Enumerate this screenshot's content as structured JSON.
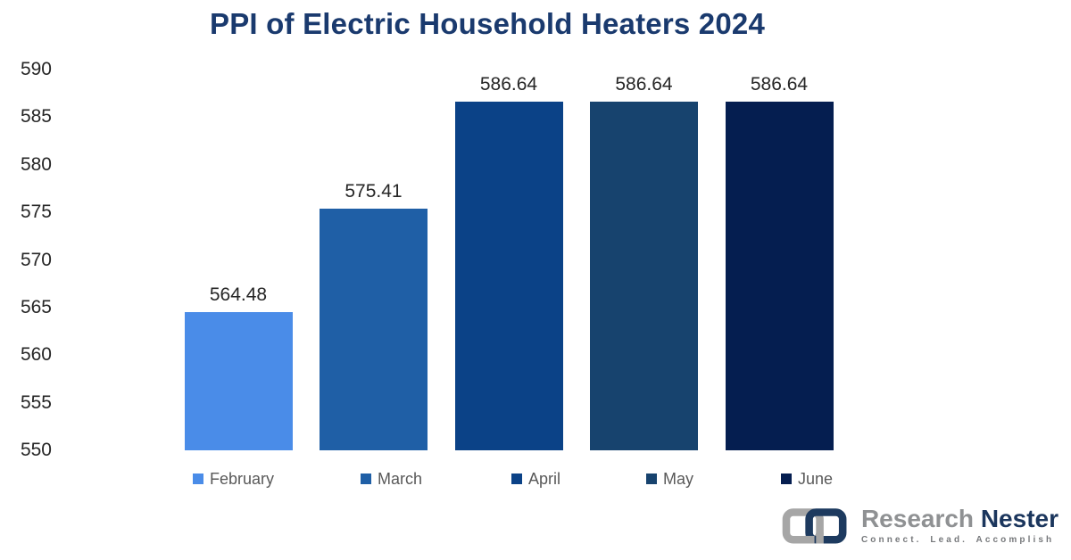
{
  "title": {
    "text": "PPI of Electric Household Heaters 2024",
    "color": "#1a3a6e"
  },
  "chart_data": {
    "type": "bar",
    "title": "PPI of Electric Household Heaters 2024",
    "categories": [
      "February",
      "March",
      "April",
      "May",
      "June"
    ],
    "values": [
      564.48,
      575.41,
      586.64,
      586.64,
      586.64
    ],
    "value_labels": [
      "564.48",
      "575.41",
      "586.64",
      "586.64",
      "586.64"
    ],
    "bar_colors": [
      "#4a8ce8",
      "#1f5fa6",
      "#0b4287",
      "#17436e",
      "#051e50"
    ],
    "xlabel": "",
    "ylabel": "",
    "ylim": [
      550,
      590
    ],
    "y_ticks": [
      590,
      585,
      580,
      575,
      570,
      565,
      560,
      555,
      550
    ],
    "grid": false,
    "legend_position": "bottom",
    "legend": [
      "February",
      "March",
      "April",
      "May",
      "June"
    ],
    "text_colors": {
      "axis": "#262626",
      "value_label": "#262626",
      "legend": "#595959"
    }
  },
  "branding": {
    "name_part1": "Research",
    "name_part2": "Nester",
    "tagline": "Connect. Lead. Accomplish",
    "colors": {
      "link_left": "#a6a6a6",
      "link_right": "#1d3a5f",
      "name_part1": "#8f9193",
      "name_part2": "#1b365d",
      "tagline": "#77797c"
    }
  }
}
